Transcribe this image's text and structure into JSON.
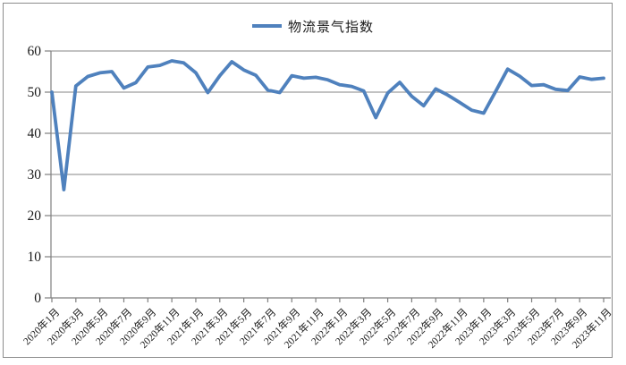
{
  "legend": {
    "label": "物流景气指数"
  },
  "colors": {
    "series": "#4F81BD",
    "grid": "#9d9d9d",
    "axis": "#7f7f7f",
    "text": "#1a1a1a",
    "frame": "#8c8c8c",
    "background": "#ffffff"
  },
  "chart_data": {
    "type": "line",
    "title": "",
    "xlabel": "",
    "ylabel": "",
    "ylim": [
      0,
      60
    ],
    "ytick_step": 10,
    "x_label_interval": 2,
    "grid": "horizontal",
    "legend_position": "top-center",
    "categories": [
      "2020年1月",
      "2020年2月",
      "2020年3月",
      "2020年4月",
      "2020年5月",
      "2020年6月",
      "2020年7月",
      "2020年8月",
      "2020年9月",
      "2020年10月",
      "2020年11月",
      "2020年12月",
      "2021年1月",
      "2021年2月",
      "2021年3月",
      "2021年4月",
      "2021年5月",
      "2021年6月",
      "2021年7月",
      "2021年8月",
      "2021年9月",
      "2021年10月",
      "2021年11月",
      "2021年12月",
      "2022年1月",
      "2022年2月",
      "2022年3月",
      "2022年4月",
      "2022年5月",
      "2022年6月",
      "2022年7月",
      "2022年8月",
      "2022年9月",
      "2022年10月",
      "2022年11月",
      "2022年12月",
      "2023年1月",
      "2023年2月",
      "2023年3月",
      "2023年4月",
      "2023年5月",
      "2023年6月",
      "2023年7月",
      "2023年8月",
      "2023年9月",
      "2023年10月",
      "2023年11月"
    ],
    "series": [
      {
        "name": "物流景气指数",
        "color": "#4F81BD",
        "values": [
          50.0,
          26.3,
          51.5,
          53.8,
          54.7,
          55.0,
          51.0,
          52.3,
          56.1,
          56.5,
          57.6,
          57.1,
          54.7,
          49.9,
          54.0,
          57.4,
          55.4,
          54.1,
          50.5,
          49.9,
          54.0,
          53.4,
          53.6,
          53.0,
          51.8,
          51.4,
          50.3,
          43.8,
          49.8,
          52.4,
          49.0,
          46.7,
          50.8,
          49.3,
          47.5,
          45.6,
          44.9,
          50.2,
          55.6,
          53.9,
          51.6,
          51.8,
          50.7,
          50.4,
          53.7,
          53.1,
          53.4
        ]
      }
    ]
  }
}
